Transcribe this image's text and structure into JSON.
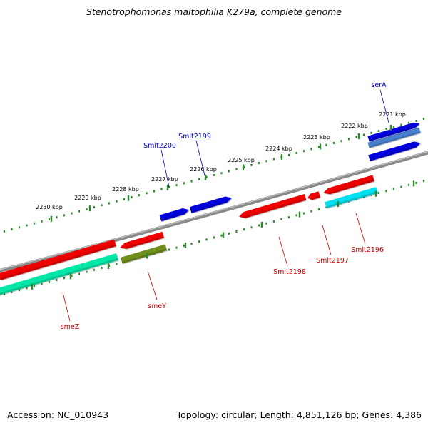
{
  "title": "Stenotrophomonas maltophilia K279a, complete genome",
  "footer": {
    "accession": "Accession: NC_010943",
    "topology": "Topology: circular; Length: 4,851,126 bp; Genes: 4,386"
  },
  "colors": {
    "backbone": "#8a8a8a",
    "dot_track": "#2a8a2a",
    "plus_label": "#0000cc",
    "minus_label": "#cc0000"
  },
  "ticks": [
    {
      "label": "2221 kbp"
    },
    {
      "label": "2222 kbp"
    },
    {
      "label": "2223 kbp"
    },
    {
      "label": "2224 kbp"
    },
    {
      "label": "2225 kbp"
    },
    {
      "label": "2226 kbp"
    },
    {
      "label": "2227 kbp"
    },
    {
      "label": "2228 kbp"
    },
    {
      "label": "2229 kbp"
    },
    {
      "label": "2230 kbp"
    }
  ],
  "genes": [
    {
      "name": "serA",
      "strand": "+",
      "color": "#0000dd"
    },
    {
      "name": "Smlt2199",
      "strand": "+",
      "color": "#0000dd"
    },
    {
      "name": "Smlt2200",
      "strand": "+",
      "color": "#0000dd"
    },
    {
      "name": "Smlt2196",
      "strand": "-",
      "color": "#ee0000"
    },
    {
      "name": "Smlt2197",
      "strand": "-",
      "color": "#ee0000"
    },
    {
      "name": "Smlt2198",
      "strand": "-",
      "color": "#ee0000"
    },
    {
      "name": "smeY",
      "strand": "-",
      "color": "#ee0000"
    },
    {
      "name": "smeZ",
      "strand": "-",
      "color": "#ee0000"
    }
  ],
  "features": [
    {
      "name": "cds-serA",
      "color": "#4a7fcf"
    },
    {
      "name": "cds-Smlt2196",
      "color": "#00e0f0"
    },
    {
      "name": "cds-smeY",
      "color": "#6f8f1f"
    },
    {
      "name": "cds-smeZ",
      "color": "#00e8a8"
    }
  ]
}
